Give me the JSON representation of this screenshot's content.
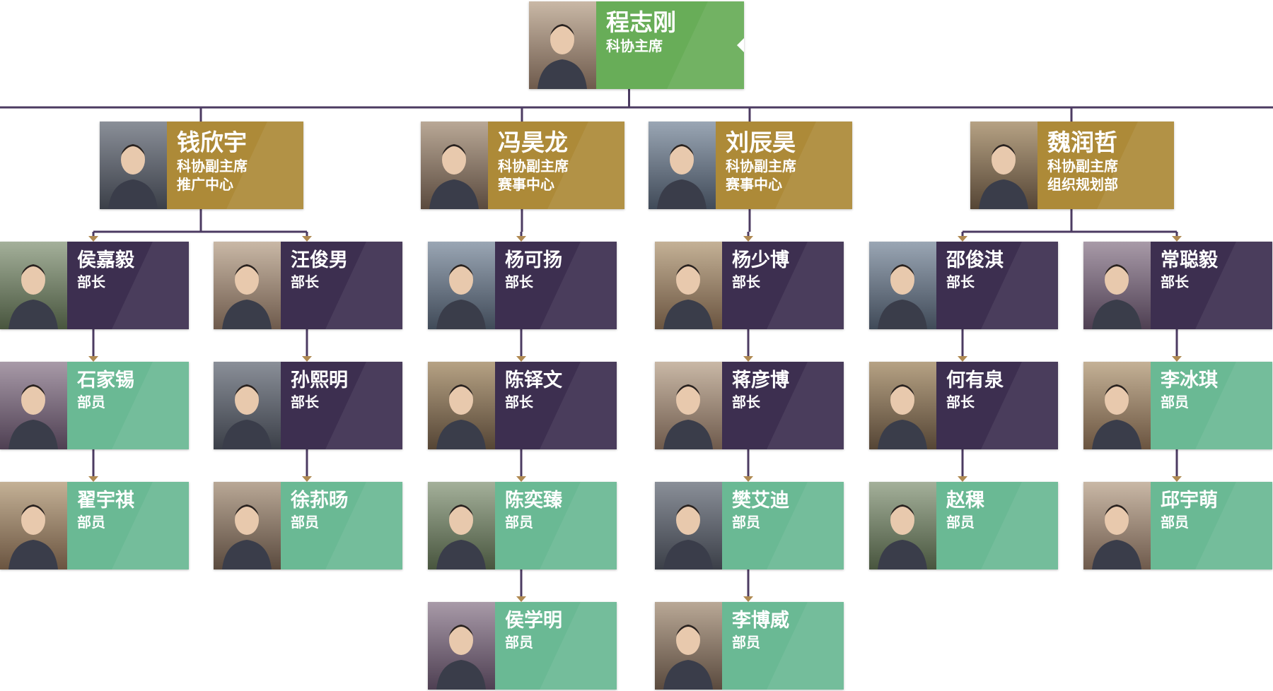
{
  "colors": {
    "line": "#4c3b62",
    "top": "#68ad58",
    "vice": "#ad8a38",
    "head": "#3d2f50",
    "member": "#6ab994"
  },
  "top": {
    "name": "程志刚",
    "roles": [
      "科协主席"
    ]
  },
  "vices": [
    {
      "name": "钱欣宇",
      "roles": [
        "科协副主席",
        "推广中心"
      ]
    },
    {
      "name": "冯昊龙",
      "roles": [
        "科协副主席",
        "赛事中心"
      ]
    },
    {
      "name": "刘辰昊",
      "roles": [
        "科协副主席",
        "赛事中心"
      ]
    },
    {
      "name": "魏润哲",
      "roles": [
        "科协副主席",
        "组织规划部"
      ]
    }
  ],
  "columns": [
    [
      {
        "name": "侯嘉毅",
        "role": "部长"
      },
      {
        "name": "石家锡",
        "role": "部员"
      },
      {
        "name": "翟宇祺",
        "role": "部员"
      }
    ],
    [
      {
        "name": "汪俊男",
        "role": "部长"
      },
      {
        "name": "孙熙明",
        "role": "部长"
      },
      {
        "name": "徐荪旸",
        "role": "部员"
      }
    ],
    [
      {
        "name": "杨可扬",
        "role": "部长"
      },
      {
        "name": "陈铎文",
        "role": "部长"
      },
      {
        "name": "陈奕臻",
        "role": "部员"
      },
      {
        "name": "侯学明",
        "role": "部员"
      }
    ],
    [
      {
        "name": "杨少博",
        "role": "部长"
      },
      {
        "name": "蒋彦博",
        "role": "部长"
      },
      {
        "name": "樊艾迪",
        "role": "部员"
      },
      {
        "name": "李博威",
        "role": "部员"
      }
    ],
    [
      {
        "name": "邵俊淇",
        "role": "部长"
      },
      {
        "name": "何有泉",
        "role": "部长"
      },
      {
        "name": "赵稞",
        "role": "部员"
      }
    ],
    [
      {
        "name": "常聪毅",
        "role": "部长"
      },
      {
        "name": "李冰琪",
        "role": "部员"
      },
      {
        "name": "邱宇萌",
        "role": "部员"
      }
    ]
  ]
}
